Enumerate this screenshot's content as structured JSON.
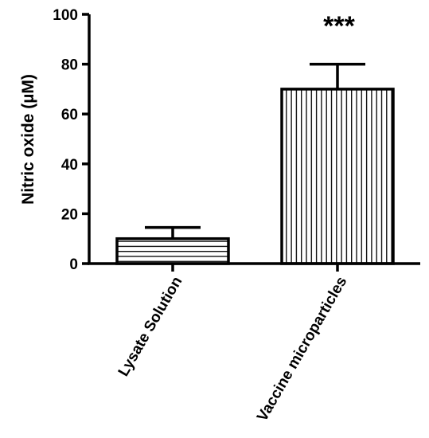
{
  "chart_data": {
    "type": "bar",
    "categories": [
      "Lysate Solution",
      "Vaccine microparticles"
    ],
    "values": [
      10,
      70
    ],
    "errors": [
      4.5,
      10
    ],
    "patterns": [
      "horizontal-hatch",
      "vertical-hatch"
    ],
    "annotations": [
      {
        "category": "Vaccine microparticles",
        "text": "***"
      }
    ],
    "ylabel": "Nitric oxide (µM)",
    "xlabel": "",
    "ylim": [
      0,
      100
    ],
    "yticks": [
      0,
      20,
      40,
      60,
      80,
      100
    ],
    "grid": false,
    "colors": {
      "bar_fill": "#ffffff",
      "stroke": "#000000"
    }
  }
}
